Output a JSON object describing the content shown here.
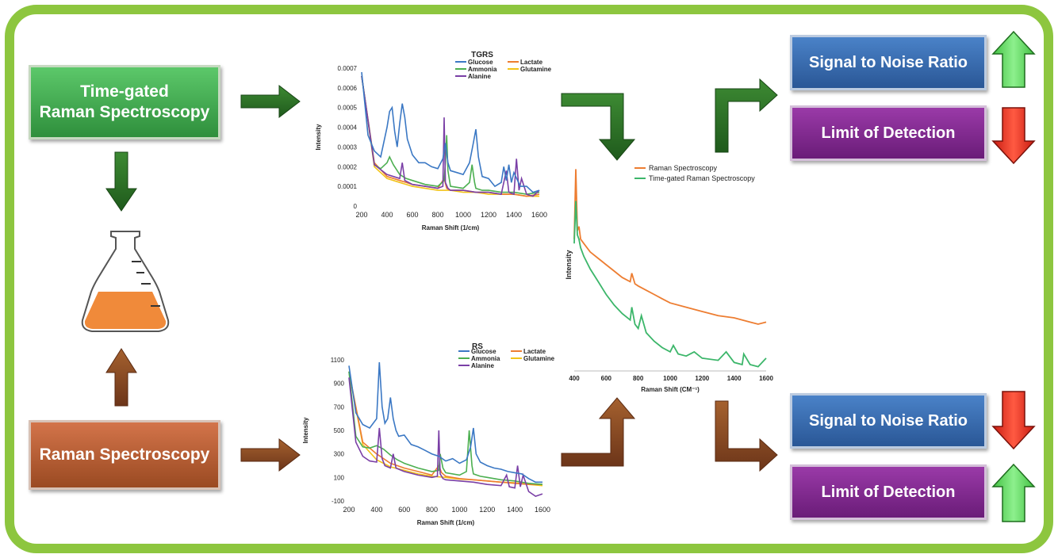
{
  "boxes": {
    "tgrs_line1": "Time-gated",
    "tgrs_line2": "Raman Spectroscopy",
    "rs": "Raman Spectroscopy",
    "snr_top": "Signal to Noise Ratio",
    "lod_top": "Limit of Detection",
    "snr_bottom": "Signal to Noise Ratio",
    "lod_bottom": "Limit of Detection"
  },
  "indicators": {
    "snr_top": "up",
    "lod_top": "down",
    "snr_bottom": "down",
    "lod_bottom": "up"
  },
  "colors": {
    "frame": "#8dc63f",
    "glucose": "#3b78c4",
    "lactate": "#ed7d31",
    "ammonia": "#4caf50",
    "glutamine": "#f2c318",
    "alanine": "#7a3fa6",
    "rs_series": "#ed7d31",
    "tgrs_series": "#3cb66a",
    "up_arrow": "#5fd35f",
    "down_arrow": "#e8291c",
    "green_arrow": "#2e6e28",
    "brown_arrow": "#8a4a26",
    "flask_liquid": "#f08a3a"
  },
  "chart_data": [
    {
      "type": "line",
      "title": "TGRS",
      "xlabel": "Raman Shift (1/cm)",
      "ylabel": "Intensity",
      "xlim": [
        200,
        1600
      ],
      "ylim": [
        0,
        0.0007
      ],
      "x_ticks": [
        "200",
        "400",
        "600",
        "800",
        "1000",
        "1200",
        "1400",
        "1600"
      ],
      "y_ticks": [
        "0",
        "0.0001",
        "0.0002",
        "0.0003",
        "0.0004",
        "0.0005",
        "0.0006",
        "0.0007"
      ],
      "legend": [
        "Glucose",
        "Lactate",
        "Ammonia",
        "Glutamine",
        "Alanine"
      ],
      "legend_position": "top-right",
      "series": [
        {
          "name": "Glucose",
          "x": [
            200,
            250,
            300,
            350,
            400,
            420,
            440,
            460,
            480,
            500,
            520,
            540,
            560,
            600,
            650,
            700,
            750,
            800,
            840,
            860,
            880,
            900,
            950,
            1000,
            1050,
            1080,
            1100,
            1120,
            1150,
            1200,
            1250,
            1300,
            1320,
            1340,
            1360,
            1380,
            1400,
            1450,
            1500,
            1550,
            1600
          ],
          "y": [
            0.00068,
            0.00036,
            0.00028,
            0.00025,
            0.0004,
            0.00048,
            0.0005,
            0.00038,
            0.0003,
            0.00042,
            0.00052,
            0.00045,
            0.00034,
            0.00026,
            0.00022,
            0.00022,
            0.0002,
            0.00019,
            0.00024,
            0.00032,
            0.00022,
            0.00018,
            0.00017,
            0.00016,
            0.00022,
            0.00032,
            0.00039,
            0.00025,
            0.00015,
            0.00014,
            0.0001,
            0.00012,
            0.0002,
            0.00013,
            0.00021,
            0.00012,
            0.00017,
            0.0001,
            0.0001,
            7e-05,
            8e-05
          ]
        },
        {
          "name": "Lactate",
          "x": [
            200,
            300,
            400,
            500,
            600,
            700,
            800,
            850,
            870,
            900,
            1000,
            1100,
            1200,
            1300,
            1400,
            1500,
            1600
          ],
          "y": [
            0.00066,
            0.00022,
            0.00015,
            0.00013,
            0.00011,
            0.0001,
            9e-05,
            0.00014,
            9e-05,
            8e-05,
            8e-05,
            7e-05,
            7e-05,
            6e-05,
            6e-05,
            5e-05,
            6e-05
          ]
        },
        {
          "name": "Ammonia",
          "x": [
            200,
            300,
            350,
            400,
            420,
            450,
            500,
            550,
            600,
            700,
            800,
            850,
            860,
            870,
            880,
            900,
            1000,
            1050,
            1070,
            1090,
            1100,
            1150,
            1200,
            1300,
            1400,
            1500,
            1600
          ],
          "y": [
            0.00066,
            0.00021,
            0.00019,
            0.00022,
            0.00025,
            0.00021,
            0.00016,
            0.00014,
            0.00013,
            0.00011,
            0.0001,
            0.00013,
            0.00022,
            0.00036,
            0.00018,
            0.0001,
            9e-05,
            0.00012,
            0.00021,
            0.00012,
            9e-05,
            8e-05,
            8e-05,
            7e-05,
            7e-05,
            6e-05,
            7e-05
          ]
        },
        {
          "name": "Glutamine",
          "x": [
            200,
            300,
            400,
            500,
            600,
            700,
            800,
            900,
            1000,
            1100,
            1200,
            1300,
            1400,
            1500,
            1600
          ],
          "y": [
            0.00066,
            0.0002,
            0.00014,
            0.00012,
            0.0001,
            9e-05,
            8e-05,
            8e-05,
            7e-05,
            7e-05,
            6e-05,
            6e-05,
            6e-05,
            5e-05,
            5e-05
          ]
        },
        {
          "name": "Alanine",
          "x": [
            200,
            300,
            400,
            500,
            520,
            540,
            600,
            700,
            800,
            840,
            850,
            860,
            880,
            900,
            1000,
            1100,
            1200,
            1300,
            1340,
            1360,
            1400,
            1420,
            1440,
            1460,
            1500,
            1550,
            1600
          ],
          "y": [
            0.00066,
            0.00021,
            0.00016,
            0.00014,
            0.00022,
            0.00013,
            0.00011,
            0.0001,
            9e-05,
            0.0001,
            0.00045,
            0.00012,
            9e-05,
            8e-05,
            8e-05,
            7e-05,
            7e-05,
            6e-05,
            0.00018,
            7e-05,
            6e-05,
            0.00024,
            8e-05,
            0.00014,
            6e-05,
            5e-05,
            8e-05
          ]
        }
      ]
    },
    {
      "type": "line",
      "title": "RS",
      "xlabel": "Raman Shift (1/cm)",
      "ylabel": "Intensity",
      "xlim": [
        200,
        1600
      ],
      "ylim": [
        -100,
        1100
      ],
      "x_ticks": [
        "200",
        "400",
        "600",
        "800",
        "1000",
        "1200",
        "1400",
        "1600"
      ],
      "y_ticks": [
        "-100",
        "100",
        "300",
        "500",
        "700",
        "900",
        "1100"
      ],
      "legend": [
        "Glucose",
        "Lactate",
        "Ammonia",
        "Glutamine",
        "Alanine"
      ],
      "legend_position": "top-right",
      "series": [
        {
          "name": "Glucose",
          "x": [
            200,
            250,
            300,
            350,
            400,
            420,
            440,
            460,
            480,
            500,
            520,
            540,
            560,
            600,
            650,
            700,
            750,
            800,
            850,
            900,
            950,
            1000,
            1050,
            1080,
            1100,
            1120,
            1150,
            1200,
            1250,
            1300,
            1350,
            1400,
            1450,
            1500,
            1550,
            1600
          ],
          "y": [
            1050,
            650,
            550,
            520,
            600,
            1080,
            700,
            560,
            600,
            780,
            600,
            500,
            450,
            460,
            380,
            360,
            330,
            300,
            280,
            240,
            260,
            220,
            250,
            360,
            520,
            300,
            230,
            200,
            180,
            170,
            150,
            140,
            130,
            90,
            60,
            60
          ]
        },
        {
          "name": "Lactate",
          "x": [
            200,
            300,
            400,
            500,
            600,
            700,
            800,
            850,
            870,
            900,
            1000,
            1100,
            1200,
            1300,
            1400,
            1500,
            1600
          ],
          "y": [
            1000,
            400,
            300,
            220,
            180,
            150,
            120,
            200,
            140,
            110,
            90,
            80,
            70,
            60,
            50,
            40,
            40
          ]
        },
        {
          "name": "Ammonia",
          "x": [
            200,
            250,
            300,
            350,
            400,
            450,
            500,
            550,
            600,
            700,
            800,
            850,
            860,
            880,
            900,
            1000,
            1050,
            1070,
            1090,
            1100,
            1150,
            1200,
            1300,
            1400,
            1500,
            1600
          ],
          "y": [
            1000,
            450,
            360,
            350,
            370,
            340,
            290,
            250,
            220,
            180,
            150,
            160,
            300,
            180,
            140,
            120,
            150,
            500,
            200,
            130,
            110,
            100,
            80,
            70,
            50,
            40
          ]
        },
        {
          "name": "Glutamine",
          "x": [
            200,
            300,
            400,
            500,
            600,
            700,
            800,
            900,
            1000,
            1100,
            1200,
            1300,
            1400,
            1500,
            1600
          ],
          "y": [
            1000,
            380,
            250,
            190,
            160,
            130,
            110,
            100,
            85,
            80,
            70,
            60,
            55,
            40,
            30
          ]
        },
        {
          "name": "Alanine",
          "x": [
            200,
            250,
            300,
            350,
            400,
            420,
            440,
            460,
            500,
            520,
            540,
            600,
            700,
            800,
            840,
            850,
            860,
            880,
            900,
            1000,
            1100,
            1200,
            1300,
            1340,
            1360,
            1400,
            1420,
            1440,
            1460,
            1500,
            1550,
            1600
          ],
          "y": [
            950,
            400,
            280,
            240,
            230,
            520,
            260,
            200,
            180,
            300,
            180,
            150,
            120,
            100,
            110,
            500,
            130,
            90,
            80,
            70,
            60,
            40,
            30,
            120,
            20,
            10,
            200,
            20,
            120,
            -20,
            -60,
            -40
          ]
        }
      ]
    },
    {
      "type": "line",
      "title": "",
      "xlabel": "Raman Shift (CM⁻¹)",
      "ylabel": "Intensity",
      "xlim": [
        400,
        1600
      ],
      "x_ticks": [
        "400",
        "600",
        "800",
        "1000",
        "1200",
        "1400",
        "1600"
      ],
      "legend": [
        "Raman Spectroscopy",
        "Time-gated Raman Spectroscopy"
      ],
      "legend_position": "top-right",
      "series": [
        {
          "name": "Raman Spectroscopy",
          "x": [
            400,
            410,
            420,
            430,
            440,
            460,
            500,
            550,
            600,
            650,
            700,
            750,
            760,
            780,
            800,
            850,
            900,
            950,
            1000,
            1100,
            1200,
            1300,
            1400,
            1500,
            1550,
            1600
          ],
          "y": [
            0.62,
            0.95,
            0.66,
            0.68,
            0.62,
            0.6,
            0.56,
            0.53,
            0.5,
            0.47,
            0.44,
            0.42,
            0.46,
            0.41,
            0.4,
            0.38,
            0.36,
            0.34,
            0.32,
            0.3,
            0.28,
            0.26,
            0.25,
            0.23,
            0.22,
            0.23
          ]
        },
        {
          "name": "Time-gated Raman Spectroscopy",
          "x": [
            400,
            410,
            420,
            430,
            440,
            460,
            500,
            550,
            600,
            650,
            700,
            750,
            760,
            780,
            800,
            820,
            850,
            900,
            950,
            1000,
            1020,
            1050,
            1100,
            1150,
            1200,
            1300,
            1350,
            1400,
            1450,
            1460,
            1500,
            1550,
            1600
          ],
          "y": [
            0.6,
            0.8,
            0.64,
            0.62,
            0.58,
            0.54,
            0.48,
            0.42,
            0.36,
            0.31,
            0.27,
            0.24,
            0.3,
            0.22,
            0.2,
            0.26,
            0.18,
            0.14,
            0.11,
            0.09,
            0.12,
            0.08,
            0.07,
            0.09,
            0.06,
            0.05,
            0.09,
            0.04,
            0.03,
            0.08,
            0.03,
            0.02,
            0.06
          ]
        }
      ]
    }
  ]
}
